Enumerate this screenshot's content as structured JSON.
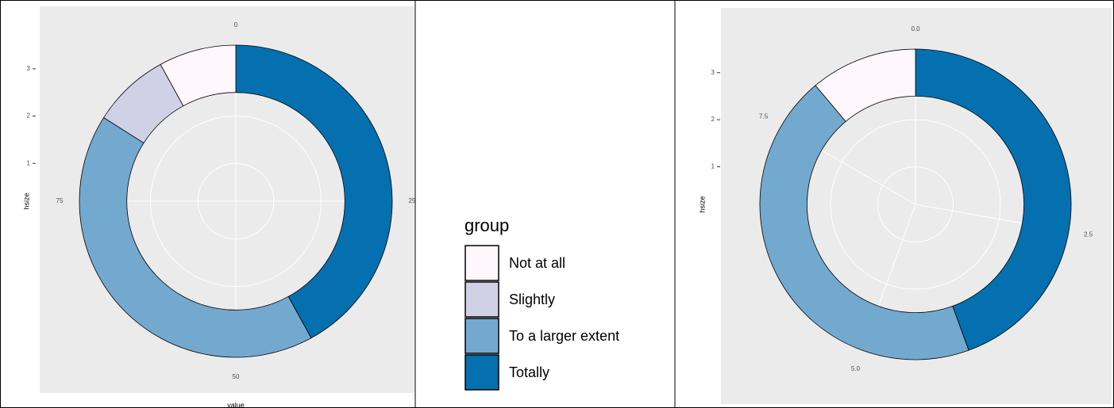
{
  "chart_data": [
    {
      "type": "donut",
      "legend_title": "group",
      "categories": [
        "Not at all",
        "Slightly",
        "To a larger extent",
        "Totally"
      ],
      "values": [
        8,
        8,
        42,
        42
      ],
      "colors": [
        "#fff7fb",
        "#d0d1e6",
        "#74a9cf",
        "#0570b0"
      ],
      "hsize": 3,
      "theta_lim": [
        0,
        100
      ],
      "theta_ticks": [
        0,
        25,
        50,
        75
      ],
      "rlim": [
        0.2,
        3.5
      ],
      "rticks": [
        1,
        2,
        3
      ],
      "x_label": "hsize",
      "y_label": "value"
    },
    {
      "type": "donut",
      "categories": [
        "Not at all",
        "To a larger extent",
        "Totally"
      ],
      "values": [
        1,
        4,
        4
      ],
      "colors": [
        "#fff7fb",
        "#74a9cf",
        "#0570b0"
      ],
      "hsize": 3,
      "theta_lim": [
        0,
        9
      ],
      "theta_ticks": [
        {
          "value": 0,
          "label": "0.0"
        },
        2.5,
        {
          "value": 5,
          "label": "5.0"
        },
        7.5
      ],
      "rlim": [
        0.2,
        3.5
      ],
      "rticks": [
        1,
        2,
        3
      ],
      "x_label": "hsize"
    }
  ]
}
